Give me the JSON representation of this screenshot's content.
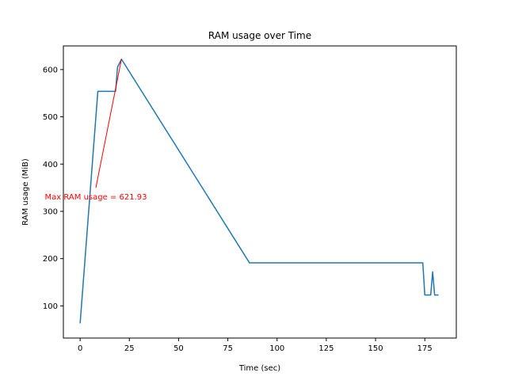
{
  "chart_data": {
    "type": "line",
    "title": "RAM usage over Time",
    "xlabel": "Time (sec)",
    "ylabel": "RAM usage (MiB)",
    "xlim": [
      -8.5,
      191
    ],
    "ylim": [
      32,
      650
    ],
    "xticks": [
      0,
      25,
      50,
      75,
      100,
      125,
      150,
      175
    ],
    "yticks": [
      100,
      200,
      300,
      400,
      500,
      600
    ],
    "grid": false,
    "series": [
      {
        "color": "#1f77b4",
        "x": [
          0,
          9,
          18,
          19,
          21,
          86,
          174,
          175,
          178,
          179,
          180,
          182
        ],
        "y": [
          63,
          554,
          554,
          605,
          621.93,
          191,
          191,
          123,
          123,
          172,
          123,
          123
        ]
      }
    ],
    "annotation": {
      "text": "Max RAM usage = 621.93",
      "color": "#ff0000",
      "text_at": [
        8,
        350
      ],
      "arrow_to": [
        21,
        621.93
      ]
    }
  }
}
